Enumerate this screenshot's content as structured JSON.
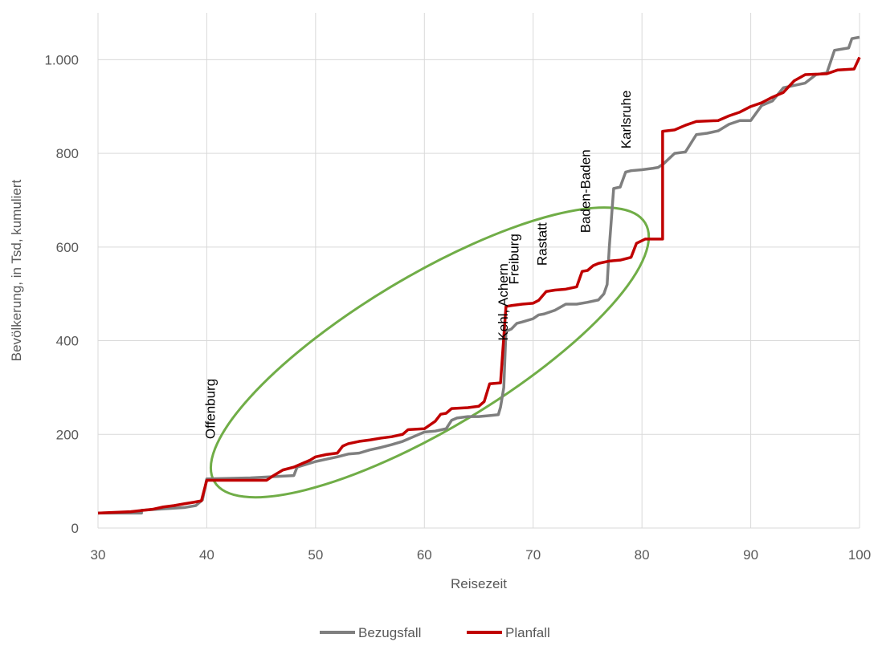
{
  "chart_data": {
    "type": "line",
    "xlabel": "Reisezeit",
    "ylabel": "Bevölkerung, in Tsd, kumuliert",
    "xlim": [
      30,
      100
    ],
    "ylim": [
      0,
      1100
    ],
    "x_ticks": [
      30,
      40,
      50,
      60,
      70,
      80,
      90,
      100
    ],
    "x_tick_labels": [
      "30",
      "40",
      "50",
      "60",
      "70",
      "80",
      "90",
      "100"
    ],
    "y_ticks": [
      0,
      200,
      400,
      600,
      800,
      1000
    ],
    "y_tick_labels": [
      "0",
      "200",
      "400",
      "600",
      "800",
      "1.000"
    ],
    "grid": "vertical-and-horizontal",
    "legend_position": "bottom",
    "series": [
      {
        "name": "Bezugsfall",
        "color": "#7f7f7f",
        "step": true,
        "points": [
          [
            30,
            32
          ],
          [
            34,
            32
          ],
          [
            34,
            38
          ],
          [
            36,
            41
          ],
          [
            38,
            44
          ],
          [
            39,
            48
          ],
          [
            39.6,
            60
          ],
          [
            40,
            105
          ],
          [
            44,
            107
          ],
          [
            48,
            112
          ],
          [
            48.3,
            130
          ],
          [
            49,
            135
          ],
          [
            50,
            142
          ],
          [
            51,
            147
          ],
          [
            52,
            152
          ],
          [
            53,
            158
          ],
          [
            54,
            160
          ],
          [
            55,
            167
          ],
          [
            56,
            172
          ],
          [
            57,
            178
          ],
          [
            58,
            185
          ],
          [
            59,
            195
          ],
          [
            60,
            205
          ],
          [
            61,
            207
          ],
          [
            62,
            212
          ],
          [
            62.5,
            230
          ],
          [
            63,
            235
          ],
          [
            64,
            238
          ],
          [
            65,
            238
          ],
          [
            66,
            240
          ],
          [
            66.8,
            242
          ],
          [
            67,
            258
          ],
          [
            67.3,
            300
          ],
          [
            67.5,
            420
          ],
          [
            68,
            425
          ],
          [
            68.5,
            437
          ],
          [
            69,
            440
          ],
          [
            70,
            447
          ],
          [
            70.5,
            455
          ],
          [
            71,
            457
          ],
          [
            72,
            465
          ],
          [
            73,
            478
          ],
          [
            74,
            478
          ],
          [
            75,
            482
          ],
          [
            76,
            487
          ],
          [
            76.5,
            500
          ],
          [
            76.8,
            520
          ],
          [
            77,
            600
          ],
          [
            77.4,
            725
          ],
          [
            78,
            728
          ],
          [
            78.5,
            760
          ],
          [
            79,
            763
          ],
          [
            80,
            765
          ],
          [
            81,
            768
          ],
          [
            81.5,
            770
          ],
          [
            82,
            778
          ],
          [
            83,
            800
          ],
          [
            84,
            803
          ],
          [
            85,
            840
          ],
          [
            86,
            843
          ],
          [
            87,
            848
          ],
          [
            87.5,
            855
          ],
          [
            88,
            862
          ],
          [
            89,
            870
          ],
          [
            90,
            870
          ],
          [
            91,
            902
          ],
          [
            92,
            912
          ],
          [
            93,
            940
          ],
          [
            94,
            945
          ],
          [
            95,
            950
          ],
          [
            96,
            968
          ],
          [
            97,
            972
          ],
          [
            97.7,
            1020
          ],
          [
            99,
            1025
          ],
          [
            99.3,
            1045
          ],
          [
            100,
            1048
          ]
        ]
      },
      {
        "name": "Planfall",
        "color": "#c00000",
        "step": true,
        "points": [
          [
            30,
            32
          ],
          [
            33,
            35
          ],
          [
            35,
            40
          ],
          [
            36,
            45
          ],
          [
            37,
            48
          ],
          [
            38,
            52
          ],
          [
            38.8,
            55
          ],
          [
            39.5,
            58
          ],
          [
            40,
            102
          ],
          [
            45.5,
            102
          ],
          [
            46,
            110
          ],
          [
            47,
            124
          ],
          [
            48,
            130
          ],
          [
            49,
            140
          ],
          [
            49.5,
            145
          ],
          [
            50,
            152
          ],
          [
            51,
            157
          ],
          [
            52,
            160
          ],
          [
            52.5,
            175
          ],
          [
            53,
            180
          ],
          [
            54,
            185
          ],
          [
            55,
            188
          ],
          [
            56,
            192
          ],
          [
            57,
            195
          ],
          [
            58,
            200
          ],
          [
            58.5,
            210
          ],
          [
            60,
            212
          ],
          [
            61,
            228
          ],
          [
            61.5,
            243
          ],
          [
            62,
            245
          ],
          [
            62.5,
            255
          ],
          [
            64,
            257
          ],
          [
            65,
            260
          ],
          [
            65.5,
            270
          ],
          [
            66,
            308
          ],
          [
            67,
            310
          ],
          [
            67.5,
            473
          ],
          [
            68,
            475
          ],
          [
            69,
            478
          ],
          [
            70,
            480
          ],
          [
            70.5,
            486
          ],
          [
            71.2,
            505
          ],
          [
            72,
            508
          ],
          [
            73,
            510
          ],
          [
            74,
            515
          ],
          [
            74.5,
            548
          ],
          [
            75,
            550
          ],
          [
            75.5,
            560
          ],
          [
            76,
            565
          ],
          [
            77,
            570
          ],
          [
            78,
            572
          ],
          [
            79,
            578
          ],
          [
            79.5,
            608
          ],
          [
            80.3,
            617
          ],
          [
            81.9,
            617
          ],
          [
            81.9,
            847
          ],
          [
            83,
            850
          ],
          [
            84,
            860
          ],
          [
            85,
            868
          ],
          [
            87,
            870
          ],
          [
            88,
            880
          ],
          [
            89,
            888
          ],
          [
            90,
            900
          ],
          [
            91,
            908
          ],
          [
            92,
            920
          ],
          [
            93,
            930
          ],
          [
            94,
            955
          ],
          [
            95,
            968
          ],
          [
            97,
            970
          ],
          [
            98,
            978
          ],
          [
            99.5,
            980
          ],
          [
            100,
            1005
          ]
        ]
      }
    ],
    "annotations": [
      {
        "text": "Offenburg",
        "x": 40.3,
        "y": 190
      },
      {
        "text": "Kehl, Achern",
        "x": 67.2,
        "y": 400
      },
      {
        "text": "Freiburg",
        "x": 68.2,
        "y": 520
      },
      {
        "text": "Rastatt",
        "x": 70.8,
        "y": 560
      },
      {
        "text": "Baden-Baden",
        "x": 74.8,
        "y": 630
      },
      {
        "text": "Karlsruhe",
        "x": 78.5,
        "y": 810
      }
    ],
    "ellipse": {
      "color": "#70ad47",
      "cx": 60.5,
      "cy": 375,
      "rx": 17.5,
      "ry": 190
    }
  }
}
